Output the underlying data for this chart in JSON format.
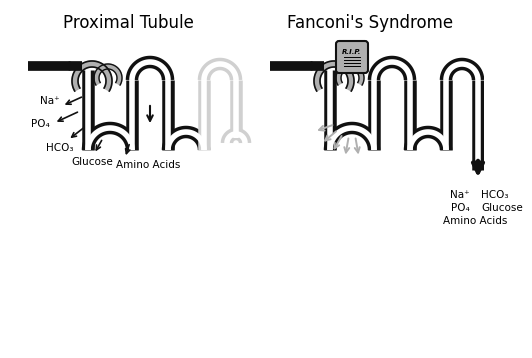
{
  "title_left": "Proximal Tubule",
  "title_right": "Fanconi's Syndrome",
  "title_fontsize": 12,
  "bg_color": "#ffffff",
  "tube_outer_color": "#111111",
  "tube_inner_color": "#ffffff",
  "tube_gray_color": "#b0b0b0",
  "tube_lgray_color": "#d0d0d0",
  "arrow_color": "#111111",
  "gray_arrow_color": "#b0b0b0",
  "labels_left": [
    "Na⁺",
    "PO₄",
    "HCO₃",
    "Glucose",
    "Amino Acids"
  ],
  "labels_right": [
    "Na⁺",
    "HCO₃",
    "PO₄",
    "Glucose",
    "Amino Acids"
  ],
  "rip_text": "R.I.P."
}
